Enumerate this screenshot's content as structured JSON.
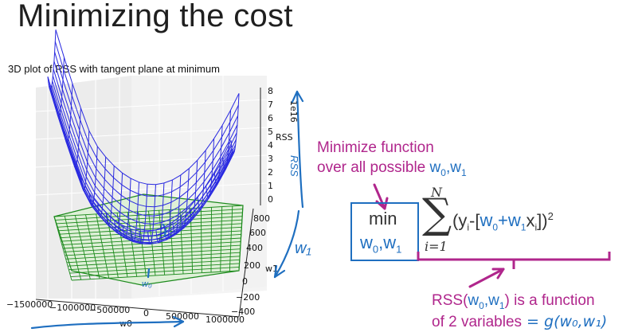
{
  "slide": {
    "title": "Minimizing the cost"
  },
  "plot": {
    "title": "3D plot of RSS with tangent plane at minimum",
    "z_label": "RSS",
    "z_scale": "1e16",
    "z_ticks": [
      "8",
      "7",
      "6",
      "5",
      "4",
      "3",
      "2",
      "1",
      "0"
    ],
    "y_ticks": [
      "800",
      "600",
      "400",
      "200",
      "0",
      "−200",
      "−400"
    ],
    "y_label": "w1",
    "x_ticks": [
      "−1500000",
      "−1000000",
      "−500000",
      "0",
      "500000",
      "1000000"
    ],
    "x_label": "w0",
    "surface_color": "#2a2ae0",
    "plane_color": "#1c8a1c"
  },
  "annotations": {
    "minimize_line1": "Minimize function",
    "minimize_line2_prefix": "over all possible ",
    "minimize_w0": "w",
    "minimize_w0_sub": "0",
    "minimize_sep": ",",
    "minimize_w1": "w",
    "minimize_w1_sub": "1",
    "handwritten_w1": "w₁",
    "handwritten_rss": "RSS",
    "handwritten_w0": "w₀"
  },
  "formula": {
    "min": "min",
    "sub_w0": "w",
    "sub_w0_i": "0",
    "sub_comma": ",",
    "sub_w1": "w",
    "sub_w1_i": "1",
    "sum_upper": "N",
    "sum_lower": "i=1",
    "sigma": "∑",
    "body_open": "(y",
    "body_yi": "i",
    "body_mid": "-[",
    "body_w0": "w",
    "body_w0_i": "0",
    "body_plus": "+w",
    "body_w1_i": "1",
    "body_x": "x",
    "body_xi": "i",
    "body_close": "])",
    "body_pow": "2"
  },
  "rss_note": {
    "line1_a": "RSS(",
    "line1_w0": "w",
    "line1_w0_i": "0",
    "line1_comma": ",",
    "line1_w1": "w",
    "line1_w1_i": "1",
    "line1_b": ") is a function",
    "line2": "of 2 variables",
    "line2_hand": " = g(w₀,w₁)"
  }
}
